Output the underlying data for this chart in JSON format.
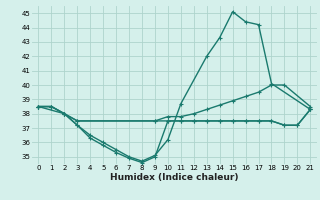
{
  "xlabel": "Humidex (Indice chaleur)",
  "xlim": [
    -0.5,
    21.5
  ],
  "ylim": [
    34.5,
    45.5
  ],
  "yticks": [
    35,
    36,
    37,
    38,
    39,
    40,
    41,
    42,
    43,
    44,
    45
  ],
  "xticks": [
    0,
    1,
    2,
    3,
    4,
    5,
    6,
    7,
    8,
    9,
    10,
    11,
    12,
    13,
    14,
    15,
    16,
    17,
    18,
    19,
    20,
    21
  ],
  "bg_color": "#d5f0eb",
  "grid_color": "#aed4cc",
  "line_color": "#1a7a6e",
  "line1_x": [
    0,
    1,
    2,
    3,
    4,
    5,
    6,
    7,
    8,
    9,
    10,
    11,
    13,
    14,
    15,
    16,
    17,
    18,
    21
  ],
  "line1_y": [
    38.5,
    38.5,
    38.0,
    37.2,
    36.5,
    36.0,
    35.5,
    35.0,
    34.7,
    35.1,
    36.2,
    38.7,
    42.0,
    43.3,
    45.1,
    44.4,
    44.2,
    40.1,
    38.3
  ],
  "line2_x": [
    0,
    2,
    3,
    4,
    5,
    6,
    7,
    8,
    9,
    10,
    11,
    12,
    13,
    14,
    15,
    16,
    17,
    18,
    19,
    20,
    21
  ],
  "line2_y": [
    38.5,
    38.0,
    37.2,
    36.3,
    35.8,
    35.3,
    34.9,
    34.6,
    35.0,
    37.5,
    37.5,
    37.5,
    37.5,
    37.5,
    37.5,
    37.5,
    37.5,
    37.5,
    37.2,
    37.2,
    38.3
  ],
  "line3_x": [
    0,
    1,
    2,
    3,
    9,
    10,
    11,
    12,
    13,
    14,
    15,
    16,
    17,
    18,
    19,
    21
  ],
  "line3_y": [
    38.5,
    38.5,
    38.0,
    37.5,
    37.5,
    37.8,
    37.8,
    38.0,
    38.3,
    38.6,
    38.9,
    39.2,
    39.5,
    40.0,
    40.0,
    38.5
  ],
  "line4_x": [
    0,
    1,
    2,
    3,
    9,
    10,
    11,
    12,
    13,
    14,
    15,
    16,
    17,
    18,
    19,
    20,
    21
  ],
  "line4_y": [
    38.5,
    38.5,
    38.0,
    37.5,
    37.5,
    37.5,
    37.5,
    37.5,
    37.5,
    37.5,
    37.5,
    37.5,
    37.5,
    37.5,
    37.2,
    37.2,
    38.3
  ]
}
